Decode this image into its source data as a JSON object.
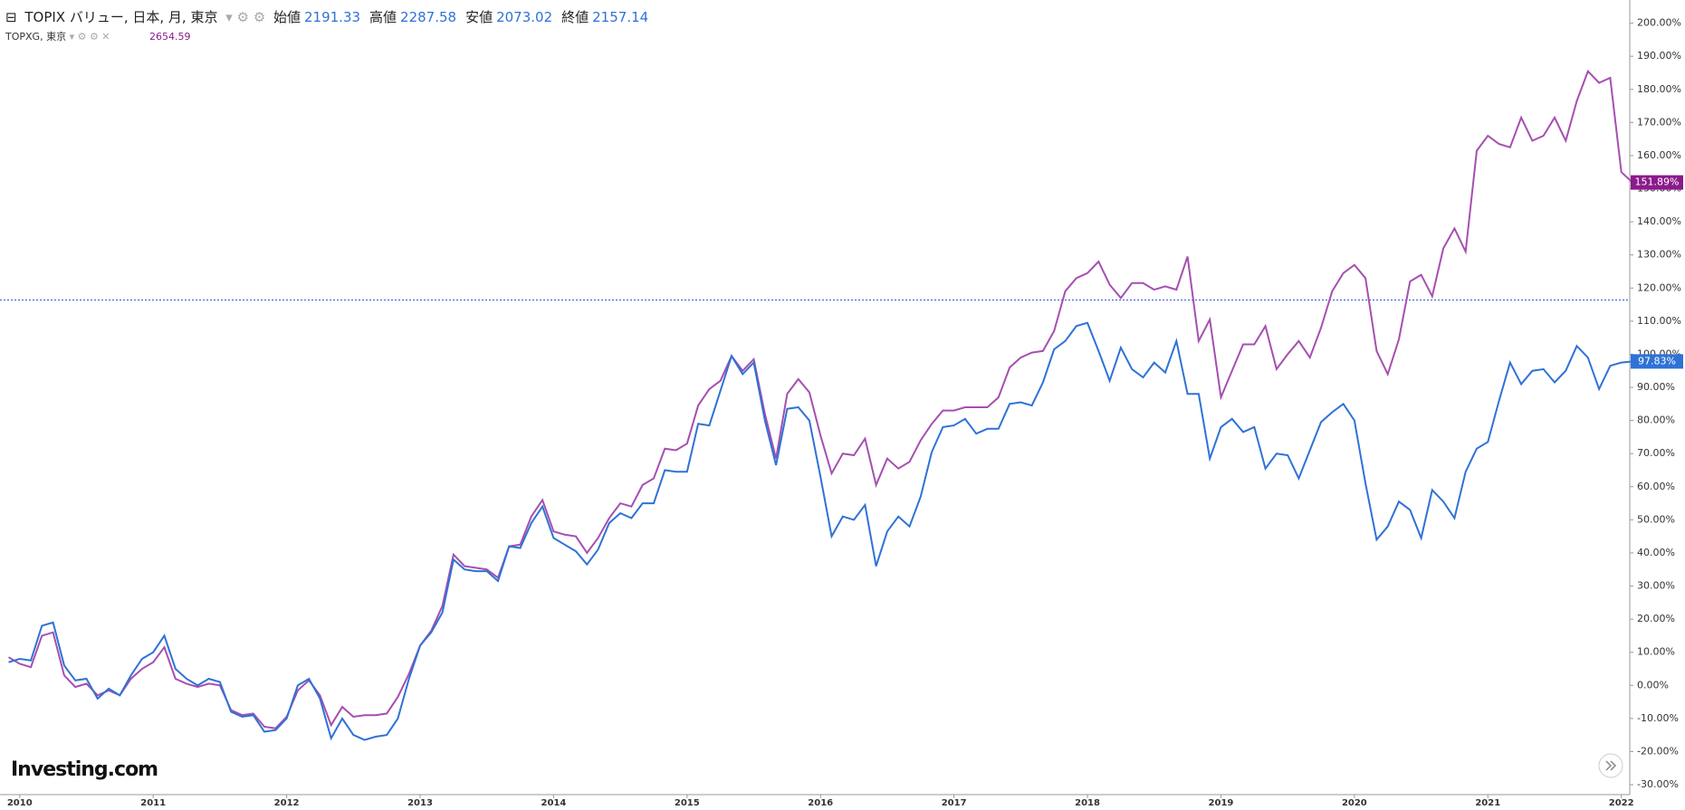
{
  "chart_data": {
    "type": "line",
    "header": {
      "ohlc": [
        {
          "label": "始値",
          "value": 2191.33
        },
        {
          "label": "高値",
          "value": 2287.58
        },
        {
          "label": "安値",
          "value": 2073.02
        },
        {
          "label": "終値",
          "value": 2157.14
        }
      ]
    },
    "logo": "Investing.com",
    "categories": [
      null,
      "2010",
      null,
      null,
      null,
      null,
      null,
      null,
      null,
      null,
      null,
      null,
      null,
      "2011",
      null,
      null,
      null,
      null,
      null,
      null,
      null,
      null,
      null,
      null,
      null,
      "2012",
      null,
      null,
      null,
      null,
      null,
      null,
      null,
      null,
      null,
      null,
      null,
      "2013",
      null,
      null,
      null,
      null,
      null,
      null,
      null,
      null,
      null,
      null,
      null,
      "2014",
      null,
      null,
      null,
      null,
      null,
      null,
      null,
      null,
      null,
      null,
      null,
      "2015",
      null,
      null,
      null,
      null,
      null,
      null,
      null,
      null,
      null,
      null,
      null,
      "2016",
      null,
      null,
      null,
      null,
      null,
      null,
      null,
      null,
      null,
      null,
      null,
      "2017",
      null,
      null,
      null,
      null,
      null,
      null,
      null,
      null,
      null,
      null,
      null,
      "2018",
      null,
      null,
      null,
      null,
      null,
      null,
      null,
      null,
      null,
      null,
      null,
      "2019",
      null,
      null,
      null,
      null,
      null,
      null,
      null,
      null,
      null,
      null,
      null,
      "2020",
      null,
      null,
      null,
      null,
      null,
      null,
      null,
      null,
      null,
      null,
      null,
      "2021",
      null,
      null,
      null,
      null,
      null,
      null,
      null,
      null,
      null,
      null,
      null,
      "2022",
      null
    ],
    "series": [
      {
        "name": "TOPIX バリュー, 日本, 月, 東京",
        "color": "#2f72d6",
        "last_label": "97.83%",
        "values": [
          7,
          8,
          7.5,
          18,
          19,
          6,
          1.5,
          2,
          -4,
          -1,
          -3,
          3,
          8,
          10,
          15,
          5,
          2,
          0,
          2,
          1,
          -8,
          -9.5,
          -9,
          -14,
          -13.5,
          -10,
          0,
          2,
          -4,
          -16,
          -10,
          -15,
          -16.5,
          -15.5,
          -15,
          -10,
          2,
          12,
          16,
          22,
          38,
          35,
          34.5,
          34.5,
          31.5,
          42,
          41.5,
          49,
          54,
          44.5,
          42.5,
          40.5,
          36.5,
          41,
          49,
          52,
          50.5,
          55,
          55,
          65,
          64.5,
          64.5,
          79,
          78.5,
          89,
          99.5,
          94,
          97.5,
          80,
          66.5,
          83.5,
          84,
          80,
          63,
          45,
          51,
          50,
          54.5,
          36,
          46.5,
          51,
          48,
          57,
          70.5,
          78,
          78.5,
          80.5,
          76,
          77.5,
          77.5,
          85,
          85.5,
          84.5,
          91.5,
          101.5,
          104,
          108.5,
          109.5,
          101,
          92,
          102,
          95.5,
          93,
          97.5,
          94.5,
          104,
          88,
          88,
          68.5,
          78,
          80.5,
          76.5,
          78,
          65.5,
          70,
          69.5,
          62.5,
          71,
          79.5,
          82.5,
          85,
          80,
          61,
          44,
          48,
          55.5,
          53,
          44.5,
          59,
          55.5,
          50.5,
          64.5,
          71.5,
          73.5,
          86,
          97.5,
          91,
          95,
          95.5,
          91.5,
          95,
          102.5,
          99,
          89.5,
          96.5,
          97.5,
          97.83
        ]
      },
      {
        "name": "TOPXG, 東京",
        "color": "#a64fb0",
        "price": 2654.59,
        "last_label": "151.89%",
        "values": [
          8.5,
          6.5,
          5.5,
          15,
          16,
          3,
          -0.5,
          0.5,
          -3,
          -1.5,
          -3,
          2,
          5,
          7,
          11.5,
          2,
          0.5,
          -0.5,
          0.5,
          0,
          -7.5,
          -9,
          -8.5,
          -12.5,
          -13,
          -9.5,
          -1.5,
          1.5,
          -3,
          -12,
          -6.5,
          -9.5,
          -9,
          -9,
          -8.5,
          -3.5,
          3.5,
          12,
          16.5,
          24,
          39.5,
          36,
          35.5,
          35,
          32.5,
          42,
          42.5,
          51,
          56,
          46.5,
          45.5,
          45,
          40,
          44.5,
          50.5,
          55,
          54,
          60.5,
          62.5,
          71.5,
          71,
          73,
          84.5,
          89.5,
          92,
          99.5,
          95,
          98.5,
          82,
          68.5,
          88,
          92.5,
          88.5,
          75.5,
          64,
          70,
          69.5,
          74.5,
          60.5,
          68.5,
          65.5,
          67.5,
          74,
          79,
          83,
          83,
          84,
          84,
          84,
          87,
          96,
          99,
          100.5,
          101,
          107,
          119,
          123,
          124.5,
          128,
          121,
          117,
          121.5,
          121.5,
          119.5,
          120.5,
          119.5,
          129.5,
          104,
          110.5,
          87,
          95,
          103,
          103,
          108.5,
          95.5,
          100,
          104,
          99,
          108,
          119,
          124.5,
          127,
          123,
          101,
          94,
          104.5,
          122,
          124,
          117.5,
          132,
          138,
          131,
          161.5,
          166,
          163.5,
          162.5,
          171.5,
          164.5,
          166,
          171.5,
          164.5,
          176.5,
          185.5,
          182,
          183.5,
          155,
          151.89
        ]
      }
    ],
    "crosshair_y": 116.4,
    "ylim": [
      -33,
      207
    ],
    "yticks": [
      {
        "value": -30,
        "label": "-30.00%"
      },
      {
        "value": -20,
        "label": "-20.00%"
      },
      {
        "value": -10,
        "label": "-10.00%"
      },
      {
        "value": 0,
        "label": "0.00%"
      },
      {
        "value": 10,
        "label": "10.00%"
      },
      {
        "value": 20,
        "label": "20.00%"
      },
      {
        "value": 30,
        "label": "30.00%"
      },
      {
        "value": 40,
        "label": "40.00%"
      },
      {
        "value": 50,
        "label": "50.00%"
      },
      {
        "value": 60,
        "label": "60.00%"
      },
      {
        "value": 70,
        "label": "70.00%"
      },
      {
        "value": 80,
        "label": "80.00%"
      },
      {
        "value": 90,
        "label": "90.00%"
      },
      {
        "value": 100,
        "label": "100.00%"
      },
      {
        "value": 110,
        "label": "110.00%"
      },
      {
        "value": 120,
        "label": "120.00%"
      },
      {
        "value": 130,
        "label": "130.00%"
      },
      {
        "value": 140,
        "label": "140.00%"
      },
      {
        "value": 150,
        "label": "150.00%"
      },
      {
        "value": 160,
        "label": "160.00%"
      },
      {
        "value": 170,
        "label": "170.00%"
      },
      {
        "value": 180,
        "label": "180.00%"
      },
      {
        "value": 190,
        "label": "190.00%"
      },
      {
        "value": 200,
        "label": "200.00%"
      }
    ]
  }
}
